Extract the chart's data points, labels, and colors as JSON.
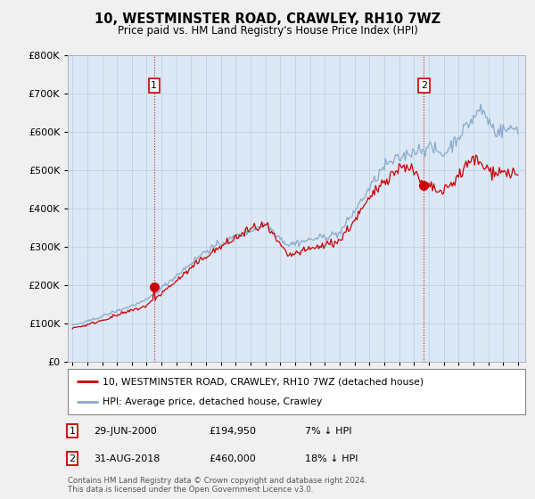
{
  "title": "10, WESTMINSTER ROAD, CRAWLEY, RH10 7WZ",
  "subtitle": "Price paid vs. HM Land Registry's House Price Index (HPI)",
  "legend_property": "10, WESTMINSTER ROAD, CRAWLEY, RH10 7WZ (detached house)",
  "legend_hpi": "HPI: Average price, detached house, Crawley",
  "footnote": "Contains HM Land Registry data © Crown copyright and database right 2024.\nThis data is licensed under the Open Government Licence v3.0.",
  "sale1_label": "1",
  "sale1_date": "29-JUN-2000",
  "sale1_price": "£194,950",
  "sale1_hpi": "7% ↓ HPI",
  "sale2_label": "2",
  "sale2_date": "31-AUG-2018",
  "sale2_price": "£460,000",
  "sale2_hpi": "18% ↓ HPI",
  "sale1_x": 2000.5,
  "sale1_y": 194950,
  "sale2_x": 2018.67,
  "sale2_y": 460000,
  "property_color": "#cc0000",
  "hpi_color": "#88aacc",
  "vline_color": "#cc0000",
  "ylim": [
    0,
    800000
  ],
  "xlim_start": 1994.7,
  "xlim_end": 2025.5,
  "plot_bg": "#dce8f5",
  "background_color": "#f0f0f0",
  "grid_color": "#b8cfe0"
}
